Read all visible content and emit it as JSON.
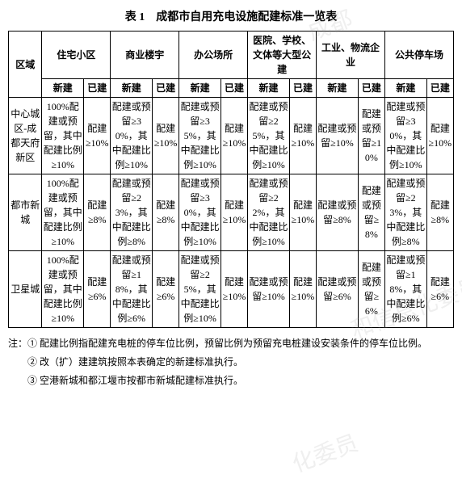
{
  "title": "表 1　成都市自用充电设施配建标准一览表",
  "header": {
    "region": "区域",
    "groups": [
      "住宅小区",
      "商业楼宇",
      "办公场所",
      "医院、学校、文体等大型公建",
      "工业、物流企业",
      "公共停车场"
    ],
    "sub_new": "新建",
    "sub_old": "已建"
  },
  "rows": [
    {
      "region": "中心城区-成都天府新区",
      "c": [
        "100%配建或预留，其中配建比例≥10%",
        "配建≥10%",
        "配建或预留≥30%，其中配建比例≥10%",
        "配建≥10%",
        "配建或预留≥35%，其中配建比例≥10%",
        "配建≥10%",
        "配建或预留≥25%，其中配建比例≥10%",
        "配建≥10%",
        "配建或预留≥10%",
        "配建或预留≥10%",
        "配建或预留≥30%，其中配建比例≥10%",
        "配建≥10%"
      ]
    },
    {
      "region": "都市新城",
      "c": [
        "100%配建或预留，其中配建比例≥10%",
        "配建≥8%",
        "配建或预留≥23%，其中配建比例≥8%",
        "配建≥8%",
        "配建或预留≥30%，其中配建比例≥10%",
        "配建≥10%",
        "配建或预留≥22%，其中配建比例≥10%",
        "配建≥10%",
        "配建或预留≥8%",
        "配建或预留≥8%",
        "配建或预留≥23%，其中配建比例≥8%",
        "配建≥8%"
      ]
    },
    {
      "region": "卫星城",
      "c": [
        "100%配建或预留，其中配建比例≥10%",
        "配建≥6%",
        "配建或预留≥18%，其中配建比例≥6%",
        "配建≥6%",
        "配建或预留≥25%，其中配建比例≥10%",
        "配建≥10%",
        "配建或预留≥10%",
        "配建≥10%",
        "配建或预留≥6%",
        "配建或预留≥6%",
        "配建或预留≥18%，其中配建比例≥6%",
        "配建≥6%"
      ]
    }
  ],
  "notes": [
    "注：① 配建比例指配建充电桩的停车位比例，预留比例为预留充电桩建设安装条件的停车位比例。",
    "　　② 改（扩）建建筑按照本表确定的新建标准执行。",
    "　　③ 空港新城和都江堰市按都市新城配建标准执行。"
  ],
  "watermarks": [
    "成都",
    "和信息化委员",
    "化委员"
  ]
}
